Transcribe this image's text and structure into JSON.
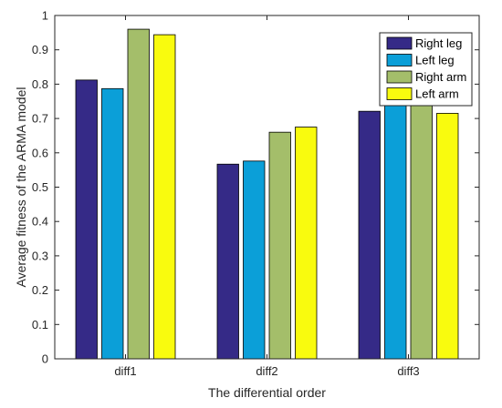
{
  "chart_data": {
    "type": "bar",
    "xlabel": "The differential order",
    "ylabel": "Average fitness of the ARMA model",
    "ylim": [
      0,
      1
    ],
    "yticks": [
      "0",
      "0.1",
      "0.2",
      "0.3",
      "0.4",
      "0.5",
      "0.6",
      "0.7",
      "0.8",
      "0.9",
      "1"
    ],
    "categories": [
      "diff1",
      "diff2",
      "diff3"
    ],
    "grid": false,
    "legend_position": "top-right",
    "series": [
      {
        "name": "Right leg",
        "color": "#352a87",
        "values": [
          0.812,
          0.567,
          0.721
        ]
      },
      {
        "name": "Left leg",
        "color": "#0b9fd8",
        "values": [
          0.787,
          0.576,
          0.747
        ]
      },
      {
        "name": "Right arm",
        "color": "#a4be6a",
        "values": [
          0.96,
          0.66,
          0.742
        ]
      },
      {
        "name": "Left arm",
        "color": "#f9fb0e",
        "values": [
          0.944,
          0.675,
          0.715
        ]
      }
    ]
  }
}
